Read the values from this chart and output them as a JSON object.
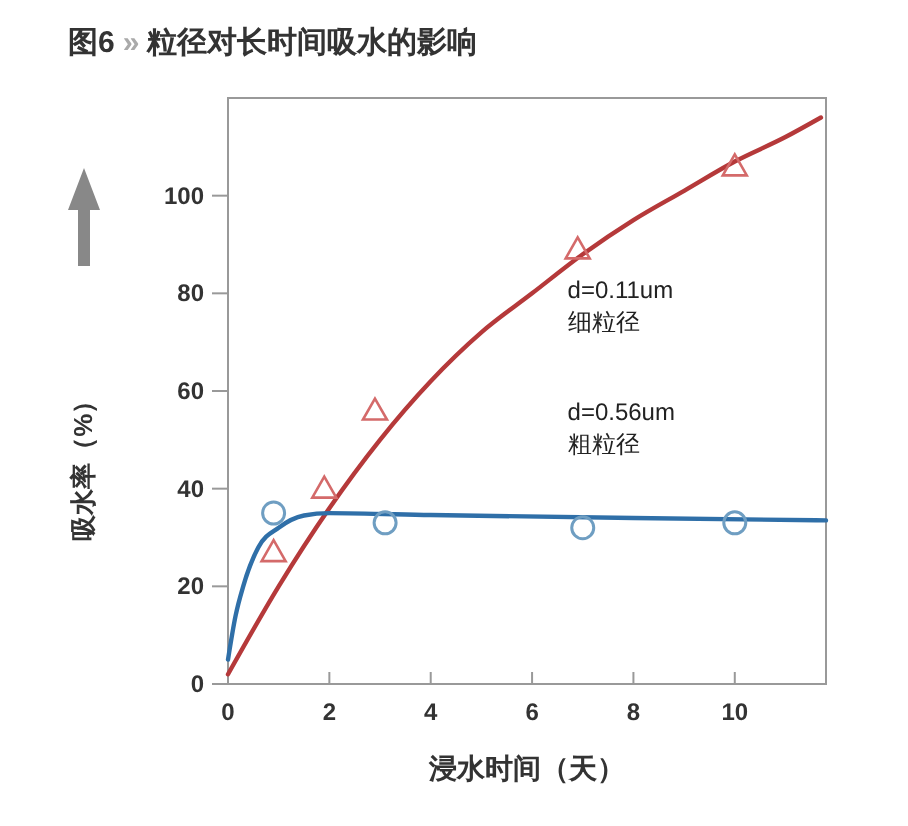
{
  "chart_data": {
    "type": "line",
    "title": "图6 » 粒径对长时间吸水的影响",
    "xlabel": "浸水时间（天）",
    "ylabel": "吸水率（%）",
    "xlim": [
      0,
      11.8
    ],
    "ylim": [
      0,
      120
    ],
    "xticks": [
      0,
      2,
      4,
      6,
      8,
      10
    ],
    "yticks": [
      0,
      20,
      40,
      60,
      80,
      100
    ],
    "grid": false,
    "series": [
      {
        "name": "d=0.11um\n细粒径",
        "color": "#b5393a",
        "x": [
          0,
          1,
          2,
          3,
          4,
          5,
          6,
          7,
          8,
          9,
          10,
          11,
          11.7
        ],
        "values": [
          2,
          20,
          36,
          50,
          62,
          72,
          80,
          88,
          95,
          101,
          107,
          112,
          116
        ]
      },
      {
        "name": "d=0.56um\n粗粒径",
        "color": "#2f6fa8",
        "x": [
          0,
          0.15,
          0.3,
          0.6,
          1,
          1.5,
          2,
          4,
          8,
          11.8
        ],
        "values": [
          5,
          14,
          20,
          28,
          32,
          34.5,
          35,
          34.6,
          34,
          33.5
        ]
      },
      {
        "type": "scatter",
        "color": "#d46a6a",
        "marker": "triangle",
        "x": [
          0.9,
          1.9,
          2.9,
          6.9,
          10
        ],
        "values": [
          27,
          40,
          56,
          89,
          106
        ]
      },
      {
        "type": "scatter",
        "color": "#6f9ec2",
        "marker": "circle",
        "x": [
          0.9,
          3.1,
          7,
          10
        ],
        "values": [
          35,
          33,
          32,
          33
        ]
      }
    ]
  }
}
